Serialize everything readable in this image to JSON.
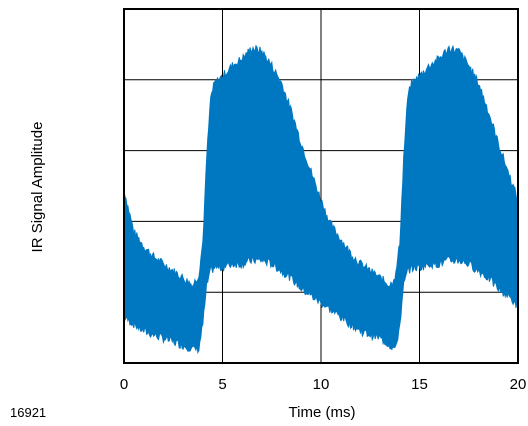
{
  "chart_data": {
    "type": "area",
    "title": "",
    "xlabel": "Time (ms)",
    "ylabel": "IR Signal Amplitude",
    "figure_id": "16921",
    "xlim": [
      0,
      20
    ],
    "ylim": [
      0,
      5
    ],
    "x_ticks": [
      0,
      5,
      10,
      15,
      20
    ],
    "y_ticks_labeled": false,
    "grid": true,
    "grid_x": [
      0,
      5,
      10,
      15,
      20
    ],
    "grid_y": [
      0,
      1,
      2,
      3,
      4,
      5
    ],
    "series": [
      {
        "color": "#0077c1",
        "x": [
          0.0,
          0.5,
          1.0,
          1.5,
          2.0,
          2.5,
          3.0,
          3.5,
          3.8,
          4.0,
          4.2,
          4.4,
          4.6,
          5.0,
          5.5,
          6.0,
          6.5,
          7.0,
          7.5,
          8.0,
          8.5,
          9.0,
          9.5,
          10.0,
          10.5,
          11.0,
          11.5,
          12.0,
          12.5,
          13.0,
          13.5,
          13.8,
          14.0,
          14.2,
          14.4,
          14.6,
          15.0,
          15.5,
          16.0,
          16.5,
          17.0,
          17.5,
          18.0,
          18.5,
          19.0,
          19.5,
          20.0
        ],
        "upper": [
          2.45,
          1.85,
          1.65,
          1.5,
          1.4,
          1.3,
          1.2,
          1.1,
          1.25,
          1.7,
          2.9,
          3.75,
          3.95,
          4.05,
          4.2,
          4.3,
          4.45,
          4.4,
          4.2,
          3.95,
          3.55,
          3.1,
          2.7,
          2.3,
          1.95,
          1.75,
          1.55,
          1.4,
          1.3,
          1.2,
          1.1,
          1.25,
          1.7,
          2.9,
          3.75,
          3.95,
          4.05,
          4.2,
          4.3,
          4.45,
          4.4,
          4.2,
          3.95,
          3.55,
          3.1,
          2.7,
          2.3
        ],
        "lower": [
          0.65,
          0.55,
          0.45,
          0.4,
          0.35,
          0.3,
          0.25,
          0.2,
          0.2,
          0.55,
          1.1,
          1.3,
          1.35,
          1.35,
          1.4,
          1.4,
          1.45,
          1.45,
          1.4,
          1.3,
          1.2,
          1.05,
          0.95,
          0.85,
          0.75,
          0.65,
          0.55,
          0.45,
          0.4,
          0.35,
          0.25,
          0.2,
          0.55,
          1.1,
          1.3,
          1.35,
          1.35,
          1.4,
          1.4,
          1.45,
          1.45,
          1.4,
          1.3,
          1.2,
          1.05,
          0.95,
          0.8
        ]
      }
    ]
  }
}
